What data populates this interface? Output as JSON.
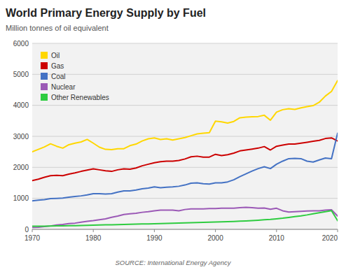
{
  "chart_data": {
    "type": "line",
    "title": "World Primary Energy Supply by Fuel",
    "subtitle": "Million tonnes of oil equivalent",
    "source": "SOURCE: International Energy Agency",
    "x": [
      1970,
      1971,
      1972,
      1973,
      1974,
      1975,
      1976,
      1977,
      1978,
      1979,
      1980,
      1981,
      1982,
      1983,
      1984,
      1985,
      1986,
      1987,
      1988,
      1989,
      1990,
      1991,
      1992,
      1993,
      1994,
      1995,
      1996,
      1997,
      1998,
      1999,
      2000,
      2001,
      2002,
      2003,
      2004,
      2005,
      2006,
      2007,
      2008,
      2009,
      2010,
      2011,
      2012,
      2013,
      2014,
      2015,
      2016,
      2017,
      2018,
      2019,
      2020
    ],
    "series": [
      {
        "name": "Oil",
        "color": "#FFD700",
        "values": [
          2500,
          2580,
          2660,
          2760,
          2680,
          2620,
          2730,
          2780,
          2820,
          2900,
          2780,
          2650,
          2580,
          2570,
          2600,
          2600,
          2700,
          2750,
          2850,
          2920,
          2950,
          2900,
          2920,
          2880,
          2920,
          2960,
          3020,
          3080,
          3100,
          3120,
          3490,
          3470,
          3430,
          3480,
          3600,
          3620,
          3630,
          3640,
          3680,
          3520,
          3780,
          3860,
          3890,
          3870,
          3920,
          3960,
          3990,
          4100,
          4300,
          4450,
          4800
        ]
      },
      {
        "name": "Gas",
        "color": "#CC0000",
        "values": [
          1570,
          1620,
          1680,
          1730,
          1740,
          1730,
          1780,
          1820,
          1870,
          1910,
          1950,
          1920,
          1890,
          1870,
          1920,
          1950,
          1940,
          1980,
          2050,
          2100,
          2150,
          2180,
          2200,
          2200,
          2220,
          2270,
          2340,
          2360,
          2330,
          2330,
          2420,
          2380,
          2410,
          2460,
          2530,
          2560,
          2590,
          2620,
          2670,
          2560,
          2680,
          2720,
          2750,
          2750,
          2780,
          2810,
          2840,
          2870,
          2930,
          2950,
          2850
        ]
      },
      {
        "name": "Coal",
        "color": "#4472C4",
        "values": [
          920,
          940,
          960,
          990,
          1000,
          1010,
          1040,
          1060,
          1080,
          1110,
          1150,
          1150,
          1140,
          1150,
          1200,
          1240,
          1240,
          1270,
          1310,
          1330,
          1370,
          1340,
          1360,
          1370,
          1390,
          1430,
          1490,
          1500,
          1470,
          1460,
          1500,
          1500,
          1530,
          1600,
          1700,
          1790,
          1880,
          1960,
          2020,
          1960,
          2100,
          2200,
          2280,
          2290,
          2280,
          2200,
          2170,
          2240,
          2300,
          2280,
          3100
        ]
      },
      {
        "name": "Nuclear",
        "color": "#9B59B6",
        "values": [
          60,
          70,
          90,
          110,
          140,
          160,
          185,
          200,
          230,
          260,
          280,
          310,
          340,
          390,
          430,
          480,
          500,
          520,
          550,
          570,
          600,
          620,
          620,
          620,
          600,
          640,
          660,
          660,
          660,
          670,
          670,
          680,
          680,
          680,
          700,
          710,
          700,
          680,
          690,
          650,
          680,
          600,
          560,
          570,
          580,
          590,
          600,
          600,
          620,
          630,
          430
        ]
      },
      {
        "name": "Other Renewables",
        "color": "#2ECC40",
        "values": [
          100,
          102,
          104,
          107,
          110,
          113,
          116,
          120,
          125,
          130,
          135,
          140,
          145,
          148,
          152,
          158,
          162,
          167,
          172,
          177,
          183,
          188,
          192,
          197,
          202,
          207,
          212,
          218,
          224,
          230,
          235,
          242,
          248,
          255,
          263,
          272,
          283,
          296,
          312,
          322,
          340,
          360,
          385,
          410,
          435,
          465,
          500,
          535,
          570,
          605,
          280
        ]
      }
    ],
    "xlim": [
      1970,
      2020
    ],
    "xticks": [
      1970,
      1980,
      1990,
      2000,
      2010,
      2020
    ],
    "ylim": [
      0,
      6000
    ],
    "yticks": [
      0,
      1000,
      2000,
      3000,
      4000,
      5000,
      6000
    ],
    "grid": true,
    "legend": "top-left"
  }
}
